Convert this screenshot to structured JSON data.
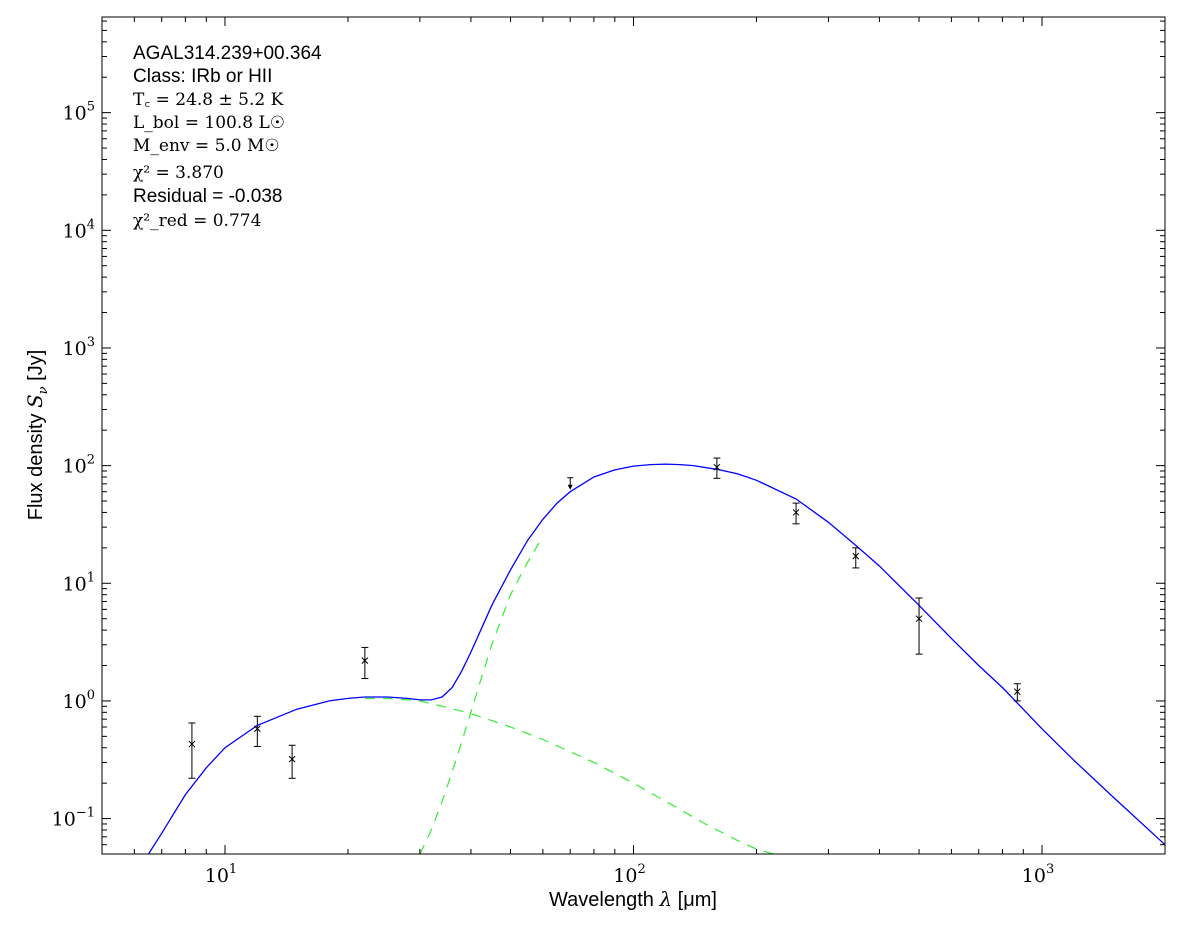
{
  "chart_data": {
    "type": "scatter",
    "xscale": "log",
    "yscale": "log",
    "xlim": [
      5,
      2000
    ],
    "ylim": [
      0.05,
      650000
    ],
    "xlabel_text": "Wavelength ",
    "xlabel_symbol": "λ",
    "xlabel_unit": " [μm]",
    "ylabel_text": "Flux density ",
    "ylabel_symbol": "S",
    "ylabel_sub": "ν",
    "ylabel_unit": " [Jy]",
    "x_ticks": [
      {
        "base": "10",
        "exp": "1",
        "value": 10
      },
      {
        "base": "10",
        "exp": "2",
        "value": 100
      },
      {
        "base": "10",
        "exp": "3",
        "value": 1000
      }
    ],
    "y_ticks": [
      {
        "base": "10",
        "exp": "−1",
        "value": 0.1
      },
      {
        "base": "10",
        "exp": "0",
        "value": 1
      },
      {
        "base": "10",
        "exp": "1",
        "value": 10
      },
      {
        "base": "10",
        "exp": "2",
        "value": 100
      },
      {
        "base": "10",
        "exp": "3",
        "value": 1000
      },
      {
        "base": "10",
        "exp": "4",
        "value": 10000
      },
      {
        "base": "10",
        "exp": "5",
        "value": 100000
      }
    ],
    "annotations": {
      "source": "AGAL314.239+00.364",
      "class": "Class: IRb or HII",
      "tc": "T꜀ = 24.8 ± 5.2 K",
      "lbol": "L_bol = 100.8 L☉",
      "menv": "M_env = 5.0 M☉",
      "chi2": "χ² = 3.870",
      "residual": "Residual = -0.038",
      "chi2red": "χ²_red = 0.774"
    },
    "points": [
      {
        "x": 8.3,
        "y": 0.43,
        "ylo": 0.22,
        "yhi": 0.65,
        "upper_limit": false
      },
      {
        "x": 12.0,
        "y": 0.58,
        "ylo": 0.41,
        "yhi": 0.74,
        "upper_limit": false
      },
      {
        "x": 14.6,
        "y": 0.32,
        "ylo": 0.22,
        "yhi": 0.42,
        "upper_limit": false
      },
      {
        "x": 22.0,
        "y": 2.2,
        "ylo": 1.55,
        "yhi": 2.85,
        "upper_limit": false
      },
      {
        "x": 70.0,
        "y": 73,
        "ylo": null,
        "yhi": null,
        "upper_limit": true
      },
      {
        "x": 160.0,
        "y": 97,
        "ylo": 78,
        "yhi": 116,
        "upper_limit": false
      },
      {
        "x": 250.0,
        "y": 40,
        "ylo": 32,
        "yhi": 48,
        "upper_limit": false
      },
      {
        "x": 350.0,
        "y": 17,
        "ylo": 13.5,
        "yhi": 20,
        "upper_limit": false
      },
      {
        "x": 500.0,
        "y": 5.0,
        "ylo": 2.5,
        "yhi": 7.5,
        "upper_limit": false
      },
      {
        "x": 870.0,
        "y": 1.2,
        "ylo": 1.0,
        "yhi": 1.4,
        "upper_limit": false
      }
    ],
    "series": [
      {
        "color": "#0000ff",
        "style": "solid",
        "x": [
          6.5,
          7,
          8,
          9,
          10,
          12,
          15,
          18,
          20,
          22,
          25,
          28,
          30,
          32,
          34,
          36,
          38,
          40,
          42,
          45,
          50,
          55,
          60,
          65,
          70,
          80,
          90,
          100,
          110,
          120,
          130,
          140,
          160,
          180,
          200,
          250,
          300,
          350,
          400,
          500,
          600,
          700,
          800,
          1000,
          1200,
          1500,
          2000
        ],
        "y": [
          0.05,
          0.075,
          0.16,
          0.27,
          0.4,
          0.62,
          0.85,
          1.0,
          1.05,
          1.08,
          1.08,
          1.05,
          1.02,
          1.02,
          1.08,
          1.3,
          1.8,
          2.6,
          3.8,
          6.5,
          13,
          23,
          35,
          48,
          60,
          80,
          92,
          99,
          102,
          103,
          102,
          100,
          93,
          85,
          75,
          52,
          33,
          21,
          14,
          6.5,
          3.4,
          2.0,
          1.3,
          0.58,
          0.31,
          0.15,
          0.06
        ]
      },
      {
        "color": "#33ee33",
        "style": "dashed",
        "x": [
          22,
          25,
          28,
          30,
          35,
          40,
          50,
          60,
          80,
          100,
          120,
          150,
          180,
          200,
          220
        ],
        "y": [
          1.05,
          1.05,
          1.02,
          1.0,
          0.88,
          0.78,
          0.6,
          0.47,
          0.3,
          0.2,
          0.14,
          0.09,
          0.065,
          0.055,
          0.05
        ]
      },
      {
        "color": "#33ee33",
        "style": "dashed",
        "x": [
          30,
          32,
          34,
          36,
          38,
          40,
          42,
          45,
          50,
          55,
          60
        ],
        "y": [
          0.05,
          0.08,
          0.14,
          0.25,
          0.45,
          0.8,
          1.4,
          3.0,
          8,
          15,
          25
        ]
      }
    ]
  }
}
